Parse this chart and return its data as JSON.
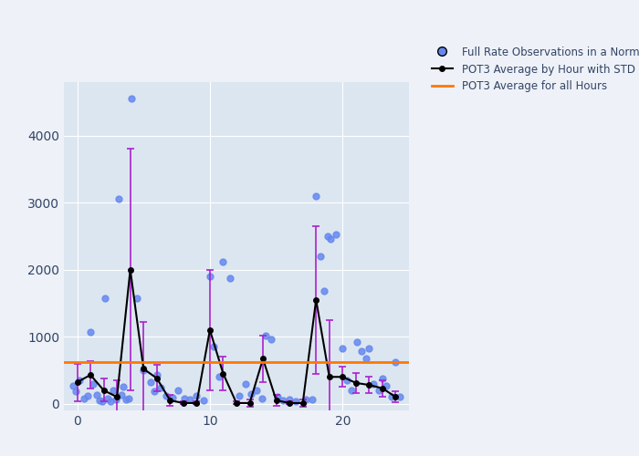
{
  "bg_color": "#dce6f1",
  "fig_bg_color": "#eef2f8",
  "overall_avg": 620,
  "hourly_x": [
    0,
    1,
    2,
    3,
    4,
    5,
    6,
    7,
    8,
    9,
    10,
    11,
    12,
    13,
    14,
    15,
    16,
    17,
    18,
    19,
    20,
    21,
    22,
    23,
    24
  ],
  "hourly_avg": [
    320,
    430,
    200,
    100,
    2000,
    520,
    380,
    50,
    10,
    10,
    1100,
    450,
    10,
    10,
    670,
    50,
    10,
    10,
    1550,
    400,
    400,
    310,
    280,
    230,
    100
  ],
  "hourly_std": [
    280,
    200,
    170,
    250,
    1800,
    700,
    200,
    80,
    20,
    20,
    900,
    250,
    20,
    50,
    350,
    80,
    20,
    50,
    1100,
    850,
    150,
    150,
    120,
    120,
    80
  ],
  "scatter_x": [
    -0.3,
    -0.1,
    0.2,
    0.5,
    0.8,
    1.0,
    1.2,
    1.5,
    1.7,
    1.9,
    2.1,
    2.3,
    2.5,
    2.7,
    2.9,
    3.1,
    3.3,
    3.5,
    3.7,
    3.9,
    4.1,
    4.5,
    5.0,
    5.5,
    5.8,
    6.0,
    6.3,
    6.7,
    7.2,
    7.6,
    8.1,
    8.5,
    9.0,
    9.5,
    10.0,
    10.3,
    10.7,
    11.0,
    11.5,
    12.2,
    12.7,
    13.1,
    13.5,
    13.9,
    14.2,
    14.6,
    15.1,
    15.5,
    16.0,
    16.5,
    17.2,
    17.7,
    18.0,
    18.3,
    18.6,
    18.9,
    19.1,
    19.5,
    20.0,
    20.3,
    20.7,
    21.1,
    21.4,
    21.8,
    22.0,
    22.3,
    22.7,
    23.0,
    23.3,
    23.7,
    24.0,
    24.3
  ],
  "scatter_y": [
    270,
    180,
    350,
    80,
    120,
    1070,
    300,
    130,
    50,
    30,
    1570,
    80,
    30,
    200,
    60,
    3060,
    130,
    250,
    60,
    80,
    4550,
    1580,
    500,
    320,
    180,
    430,
    240,
    120,
    90,
    200,
    80,
    60,
    120,
    50,
    1900,
    850,
    400,
    2120,
    1870,
    120,
    300,
    150,
    200,
    80,
    1010,
    960,
    100,
    50,
    70,
    30,
    70,
    60,
    3100,
    2200,
    1680,
    2500,
    2460,
    2530,
    820,
    350,
    200,
    920,
    780,
    680,
    830,
    300,
    200,
    380,
    270,
    110,
    620,
    100
  ],
  "scatter_color": "#6688ee",
  "line_color": "#000000",
  "error_color": "#aa22cc",
  "avg_line_color": "#ff7700",
  "xlim": [
    -1,
    25
  ],
  "ylim": [
    -100,
    4800
  ],
  "xticks": [
    0,
    10,
    20
  ],
  "yticks": [
    0,
    1000,
    2000,
    3000,
    4000
  ],
  "legend1": "Full Rate Observations in a Normal Point",
  "legend2": "POT3 Average by Hour with STD",
  "legend3": "POT3 Average for all Hours"
}
